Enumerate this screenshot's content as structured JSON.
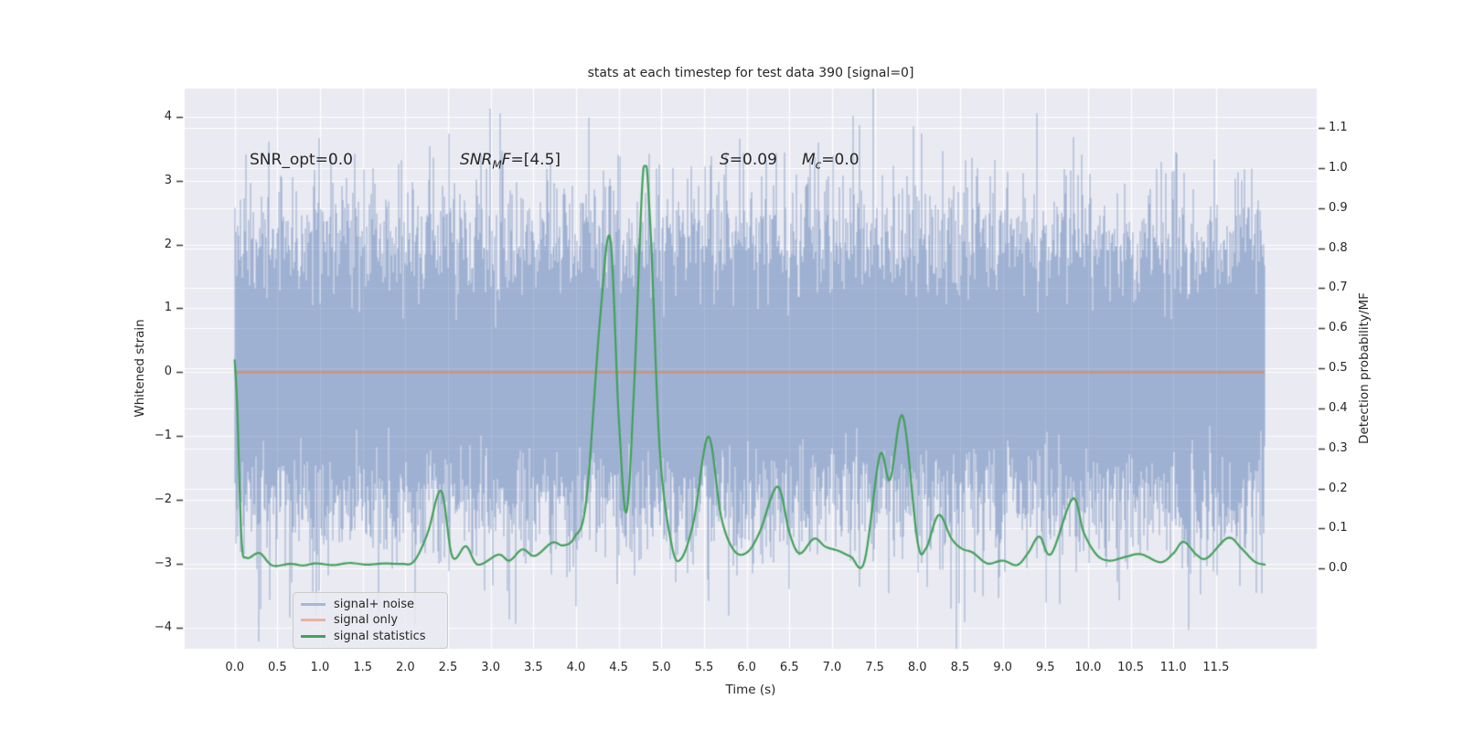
{
  "title": "stats at each timestep for test data 390 [signal=0]",
  "annotations": {
    "snr_opt": "SNR_opt=0.0",
    "snr_mf": {
      "i1": "SNR",
      "sub": "M",
      "i2": "F",
      "rest": "=[4.5]"
    },
    "s_stat": {
      "i1": "S",
      "rest": "=0.09"
    },
    "m_c": {
      "i1": "M",
      "sub": "c",
      "rest": "=0.0"
    }
  },
  "axes": {
    "x": {
      "label": "Time (s)",
      "tick_labels": [
        "0.0",
        "0.5",
        "1.0",
        "1.5",
        "2.0",
        "2.5",
        "3.0",
        "3.5",
        "4.0",
        "4.5",
        "5.0",
        "5.5",
        "6.0",
        "6.5",
        "7.0",
        "7.5",
        "8.0",
        "8.5",
        "9.0",
        "9.5",
        "10.0",
        "10.5",
        "11.0",
        "11.5"
      ]
    },
    "left": {
      "label": "Whitened strain",
      "tick_labels": [
        "4",
        "3",
        "2",
        "1",
        "0",
        "−1",
        "−2",
        "−3",
        "−4"
      ]
    },
    "right": {
      "label": "Detection probability/MF",
      "tick_labels": [
        "1.1",
        "1.0",
        "0.9",
        "0.8",
        "0.7",
        "0.6",
        "0.5",
        "0.4",
        "0.3",
        "0.2",
        "0.1",
        "0.0"
      ]
    }
  },
  "legend": {
    "items": [
      {
        "label": "signal+ noise",
        "color": "#a5b8da"
      },
      {
        "label": "signal only",
        "color": "#eab29c"
      },
      {
        "label": "signal statistics",
        "color": "#42a15a"
      }
    ]
  },
  "colors": {
    "figure_bg": "#ffffff",
    "axes_bg": "#eaeaf2",
    "grid": "#ffffff",
    "tick_mark": "#3b3b3b",
    "text": "#262626"
  },
  "chart_data": {
    "type": "line",
    "title": "stats at each timestep for test data 390 [signal=0]",
    "xlabel": "Time (s)",
    "ylabel_left": "Whitened strain",
    "ylabel_right": "Detection probability/MF",
    "grid": true,
    "legend_position": "lower left",
    "xlim": [
      -0.586,
      12.68
    ],
    "ylim_left": [
      -4.33,
      4.44
    ],
    "ylim_right": [
      -0.2,
      1.198
    ],
    "xticks": [
      0,
      0.5,
      1,
      1.5,
      2,
      2.5,
      3,
      3.5,
      4,
      4.5,
      5,
      5.5,
      6,
      6.5,
      7,
      7.5,
      8,
      8.5,
      9,
      9.5,
      10,
      10.5,
      11,
      11.5
    ],
    "yticks_left": [
      4,
      3,
      2,
      1,
      0,
      -1,
      -2,
      -3,
      -4
    ],
    "yticks_right": [
      1.1,
      1.0,
      0.9,
      0.8,
      0.7,
      0.6,
      0.5,
      0.4,
      0.3,
      0.2,
      0.1,
      0.0
    ],
    "series": [
      {
        "name": "signal+ noise",
        "axis": "left",
        "kind": "gaussian_noise",
        "mean": 0.0,
        "std": 1.12,
        "t_start": 0.0,
        "t_end": 12.07,
        "samples_per_column": 22,
        "seed": 390,
        "color": "rgba(76,114,176,0.55)"
      },
      {
        "name": "signal only",
        "axis": "left",
        "kind": "constant",
        "value": 0.0,
        "t_start": 0.0,
        "t_end": 12.07,
        "linewidth": 2.5,
        "color": "rgba(221,132,82,0.7)"
      },
      {
        "name": "signal statistics",
        "axis": "right",
        "kind": "smooth_curve",
        "linewidth": 2.2,
        "color": "#42a15a",
        "points": [
          [
            0.0,
            0.52
          ],
          [
            0.03,
            0.4
          ],
          [
            0.08,
            0.073
          ],
          [
            0.14,
            0.027
          ],
          [
            0.29,
            0.039
          ],
          [
            0.44,
            0.008
          ],
          [
            0.65,
            0.012
          ],
          [
            0.8,
            0.008
          ],
          [
            0.95,
            0.013
          ],
          [
            1.15,
            0.009
          ],
          [
            1.35,
            0.014
          ],
          [
            1.55,
            0.01
          ],
          [
            1.75,
            0.013
          ],
          [
            1.95,
            0.012
          ],
          [
            2.1,
            0.018
          ],
          [
            2.26,
            0.088
          ],
          [
            2.42,
            0.194
          ],
          [
            2.55,
            0.03
          ],
          [
            2.71,
            0.056
          ],
          [
            2.85,
            0.01
          ],
          [
            3.09,
            0.035
          ],
          [
            3.22,
            0.02
          ],
          [
            3.37,
            0.048
          ],
          [
            3.52,
            0.032
          ],
          [
            3.72,
            0.065
          ],
          [
            3.85,
            0.058
          ],
          [
            3.98,
            0.078
          ],
          [
            4.12,
            0.17
          ],
          [
            4.28,
            0.62
          ],
          [
            4.4,
            0.825
          ],
          [
            4.5,
            0.38
          ],
          [
            4.59,
            0.14
          ],
          [
            4.68,
            0.45
          ],
          [
            4.79,
            1.0
          ],
          [
            4.87,
            0.86
          ],
          [
            4.98,
            0.3
          ],
          [
            5.12,
            0.06
          ],
          [
            5.23,
            0.024
          ],
          [
            5.38,
            0.12
          ],
          [
            5.55,
            0.33
          ],
          [
            5.7,
            0.13
          ],
          [
            5.85,
            0.046
          ],
          [
            6.0,
            0.04
          ],
          [
            6.15,
            0.09
          ],
          [
            6.36,
            0.205
          ],
          [
            6.5,
            0.09
          ],
          [
            6.62,
            0.038
          ],
          [
            6.79,
            0.075
          ],
          [
            6.92,
            0.055
          ],
          [
            7.08,
            0.044
          ],
          [
            7.22,
            0.03
          ],
          [
            7.38,
            0.018
          ],
          [
            7.56,
            0.283
          ],
          [
            7.68,
            0.222
          ],
          [
            7.83,
            0.381
          ],
          [
            8.0,
            0.07
          ],
          [
            8.1,
            0.05
          ],
          [
            8.25,
            0.134
          ],
          [
            8.4,
            0.075
          ],
          [
            8.52,
            0.05
          ],
          [
            8.65,
            0.04
          ],
          [
            8.82,
            0.013
          ],
          [
            9.0,
            0.02
          ],
          [
            9.17,
            0.009
          ],
          [
            9.3,
            0.04
          ],
          [
            9.43,
            0.08
          ],
          [
            9.57,
            0.037
          ],
          [
            9.82,
            0.175
          ],
          [
            9.95,
            0.09
          ],
          [
            10.1,
            0.035
          ],
          [
            10.25,
            0.02
          ],
          [
            10.45,
            0.03
          ],
          [
            10.62,
            0.036
          ],
          [
            10.85,
            0.016
          ],
          [
            11.0,
            0.038
          ],
          [
            11.12,
            0.067
          ],
          [
            11.28,
            0.033
          ],
          [
            11.4,
            0.027
          ],
          [
            11.64,
            0.077
          ],
          [
            11.8,
            0.05
          ],
          [
            11.95,
            0.018
          ],
          [
            12.07,
            0.01
          ]
        ]
      }
    ]
  }
}
